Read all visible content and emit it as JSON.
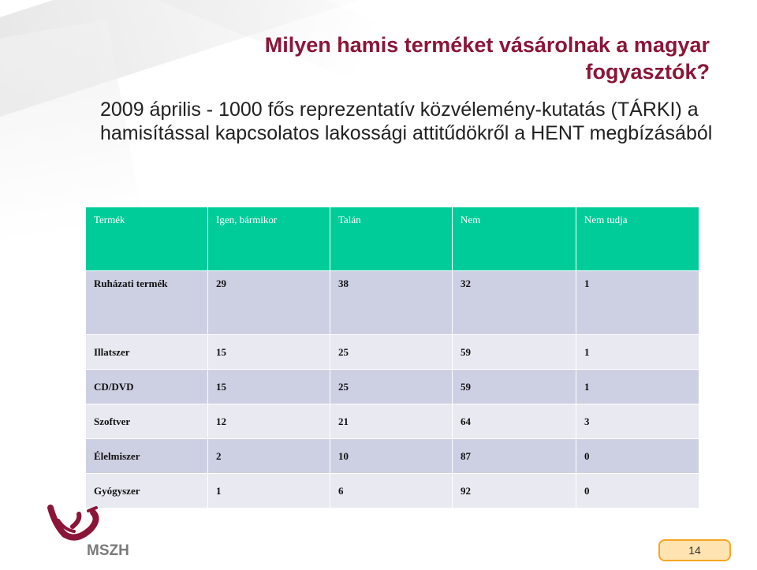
{
  "title": "Milyen hamis terméket vásárolnak a magyar fogyasztók?",
  "subtitle": "2009 április - 1000 fős reprezentatív közvélemény-kutatás (TÁRKI) a hamisítással kapcsolatos lakossági attitűdökről a HENT megbízásából",
  "table": {
    "headers": [
      "Termék",
      "Igen, bármikor",
      "Talán",
      "Nem",
      "Nem tudja"
    ],
    "rows": [
      [
        "Ruházati termék",
        "29",
        "38",
        "32",
        "1"
      ],
      [
        "Illatszer",
        "15",
        "25",
        "59",
        "1"
      ],
      [
        "CD/DVD",
        "15",
        "25",
        "59",
        "1"
      ],
      [
        "Szoftver",
        "12",
        "21",
        "64",
        "3"
      ],
      [
        "Élelmiszer",
        "2",
        "10",
        "87",
        "0"
      ],
      [
        "Gyógyszer",
        "1",
        "6",
        "92",
        "0"
      ]
    ]
  },
  "logo": {
    "text": "MSZH",
    "icon": "mszh-logo-icon",
    "color": "#8b1538"
  },
  "page_number": "14",
  "colors": {
    "title": "#8b1538",
    "header_bg": "#00cc99",
    "row_dark": "#cdd0e3",
    "row_light": "#e8e9f1",
    "badge": "#f6a623"
  }
}
